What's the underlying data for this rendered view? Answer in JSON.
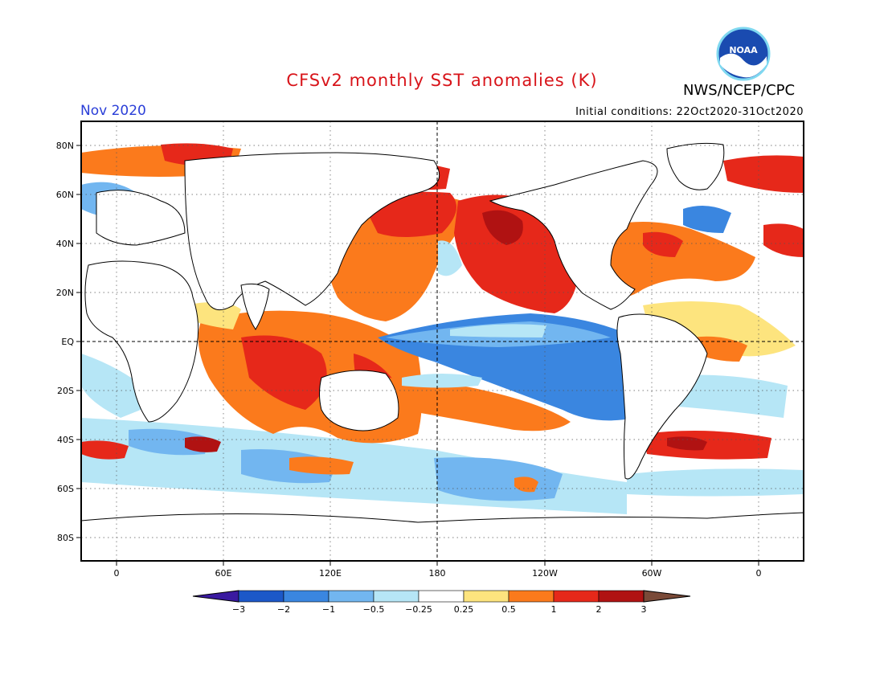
{
  "header": {
    "title": "CFSv2 monthly SST anomalies (K)",
    "agency": "NWS/NCEP/CPC",
    "logo_text": "NOAA",
    "month": "Nov 2020",
    "initial_conditions": "Initial conditions: 22Oct2020-31Oct2020"
  },
  "map": {
    "lat_labels": [
      "80N",
      "60N",
      "40N",
      "20N",
      "EQ",
      "20S",
      "40S",
      "60S",
      "80S"
    ],
    "lon_labels": [
      "0",
      "60E",
      "120E",
      "180",
      "120W",
      "60W",
      "0"
    ]
  },
  "colorbar": {
    "labels": [
      "-3",
      "-2",
      "-1",
      "-0.5",
      "-0.25",
      "0.25",
      "0.5",
      "1",
      "2",
      "3"
    ],
    "colors": [
      "#3a1aa0",
      "#1c58c8",
      "#3a86e0",
      "#72b6f0",
      "#b6e6f6",
      "#ffffff",
      "#fde47e",
      "#fb7a1c",
      "#e6281a",
      "#b01212",
      "#7a4a38"
    ]
  }
}
